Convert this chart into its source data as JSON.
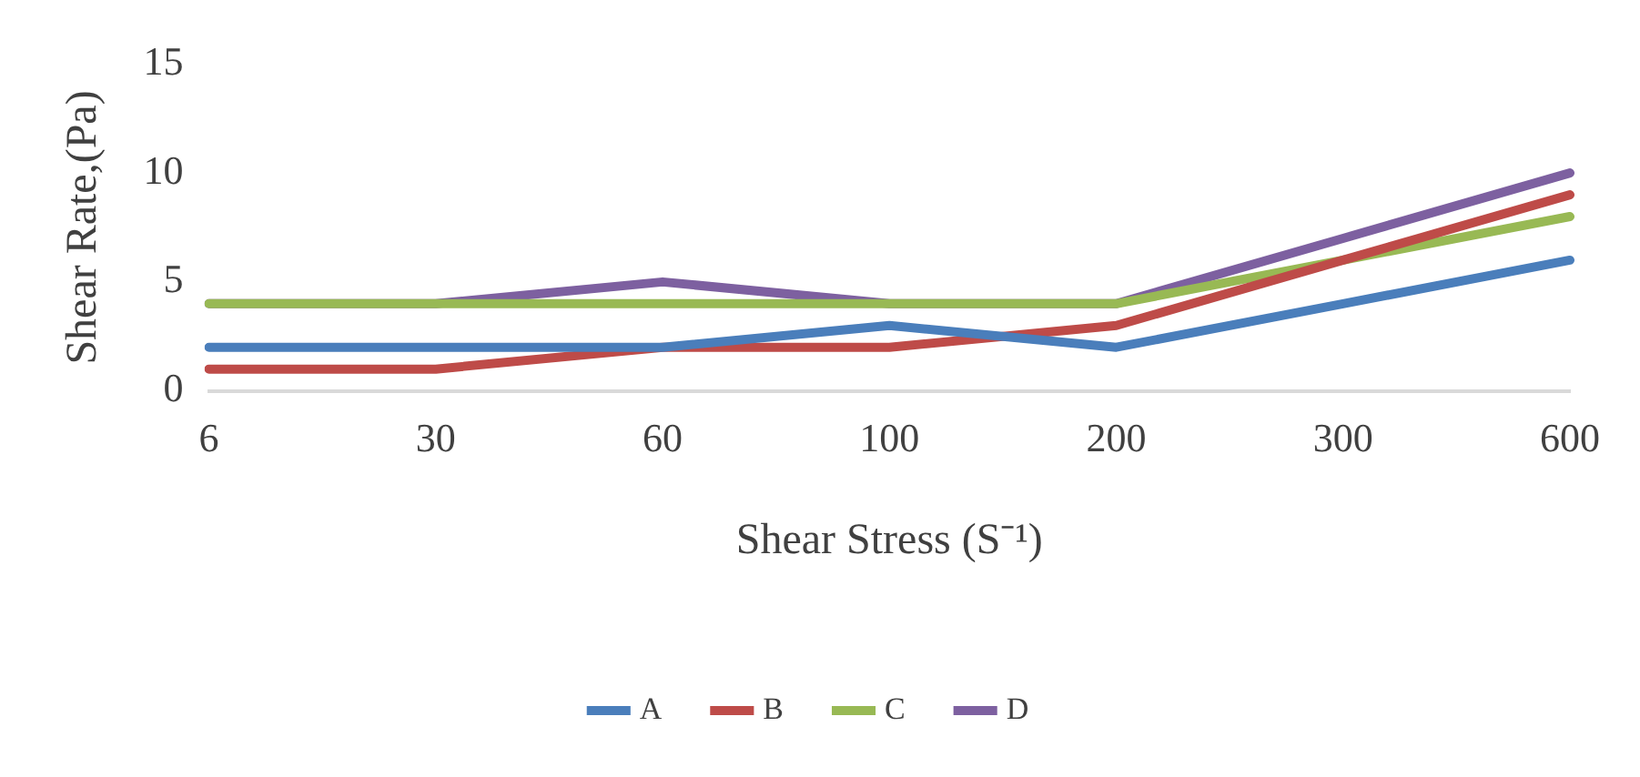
{
  "chart_data": {
    "type": "line",
    "xlabel": "Shear Stress (S⁻¹)",
    "ylabel": "Shear Rate,(Pa)",
    "categories": [
      "6",
      "30",
      "60",
      "100",
      "200",
      "300",
      "600"
    ],
    "series": [
      {
        "name": "A",
        "color": "#4a7ebb",
        "values": [
          2,
          2,
          2,
          3,
          2,
          4,
          6
        ]
      },
      {
        "name": "B",
        "color": "#be4b48",
        "values": [
          1,
          1,
          2,
          2,
          3,
          6,
          9
        ]
      },
      {
        "name": "C",
        "color": "#98b954",
        "values": [
          4,
          4,
          4,
          4,
          4,
          6,
          8
        ]
      },
      {
        "name": "D",
        "color": "#7d60a0",
        "values": [
          4,
          4,
          5,
          4,
          4,
          7,
          10
        ]
      }
    ],
    "ylim": [
      0,
      15
    ],
    "yticks": [
      0,
      5,
      10,
      15
    ],
    "grid": false,
    "legend": "bottom",
    "marker": "none",
    "line_style": "solid"
  }
}
